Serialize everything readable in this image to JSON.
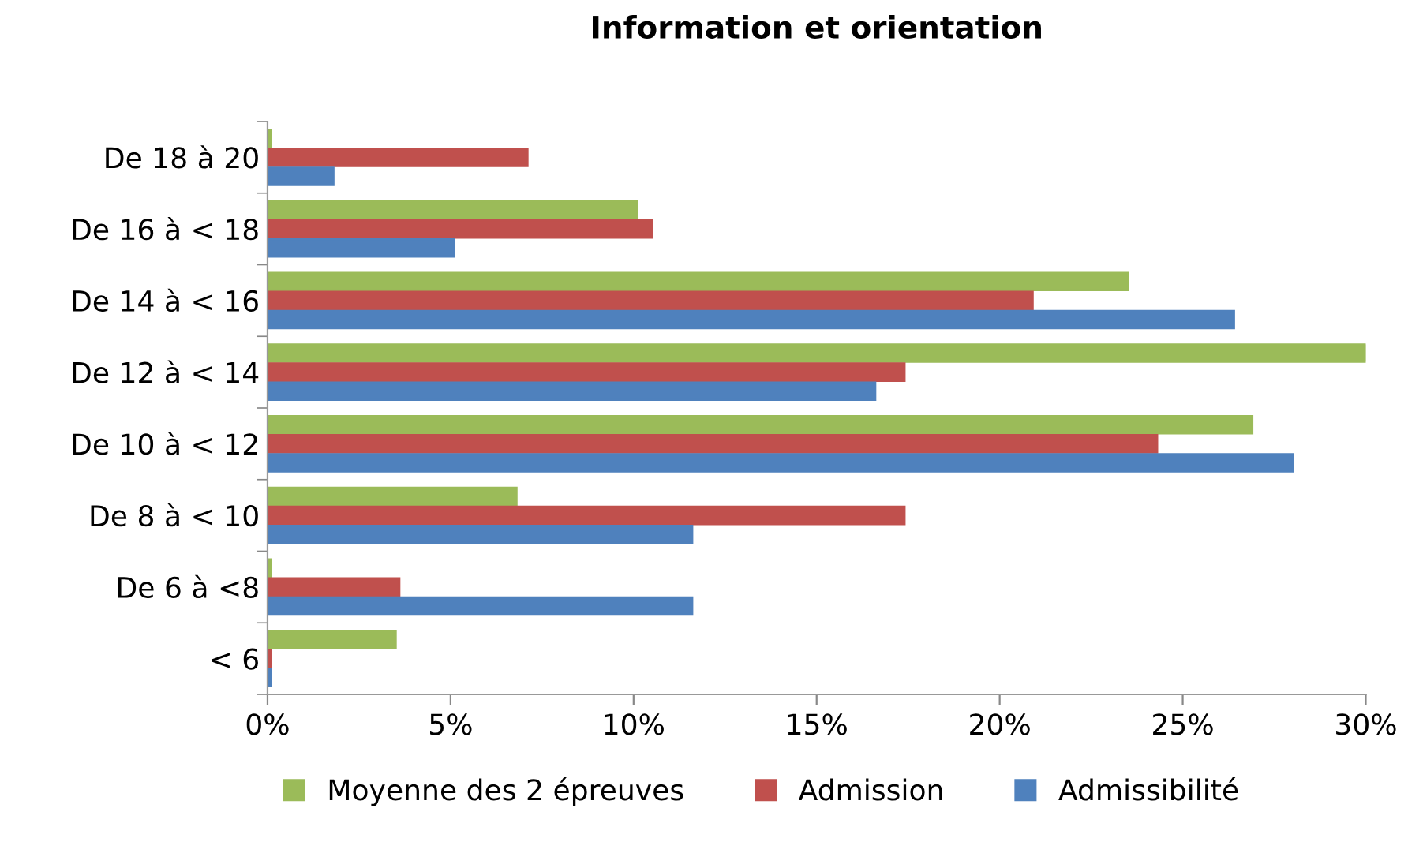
{
  "chart_data": {
    "type": "bar",
    "orientation": "horizontal",
    "title": "Information et orientation",
    "categories": [
      "De 18 à 20",
      "De 16 à < 18",
      "De 14 à < 16",
      "De 12 à < 14",
      "De 10 à < 12",
      "De 8 à < 10",
      "De 6 à <8",
      "< 6"
    ],
    "series": [
      {
        "name": "Moyenne des 2 épreuves",
        "color": "#9bbb59",
        "values": [
          0.1,
          10.1,
          23.5,
          30,
          26.9,
          6.8,
          0.1,
          3.5
        ]
      },
      {
        "name": "Admission",
        "color": "#c0504d",
        "values": [
          7.1,
          10.5,
          20.9,
          17.4,
          24.3,
          17.4,
          3.6,
          0.1
        ]
      },
      {
        "name": "Admissibilité",
        "color": "#4f81bd",
        "values": [
          1.8,
          5.1,
          26.4,
          16.6,
          28.0,
          11.6,
          11.6,
          0.1
        ]
      }
    ],
    "xlim": [
      0,
      30
    ],
    "xticks": [
      {
        "value": 0,
        "label": "0%"
      },
      {
        "value": 5,
        "label": "5%"
      },
      {
        "value": 10,
        "label": "10%"
      },
      {
        "value": 15,
        "label": "15%"
      },
      {
        "value": 20,
        "label": "20%"
      },
      {
        "value": 25,
        "label": "25%"
      },
      {
        "value": 30,
        "label": "30%"
      }
    ],
    "grid": false,
    "legend": "bottom"
  }
}
